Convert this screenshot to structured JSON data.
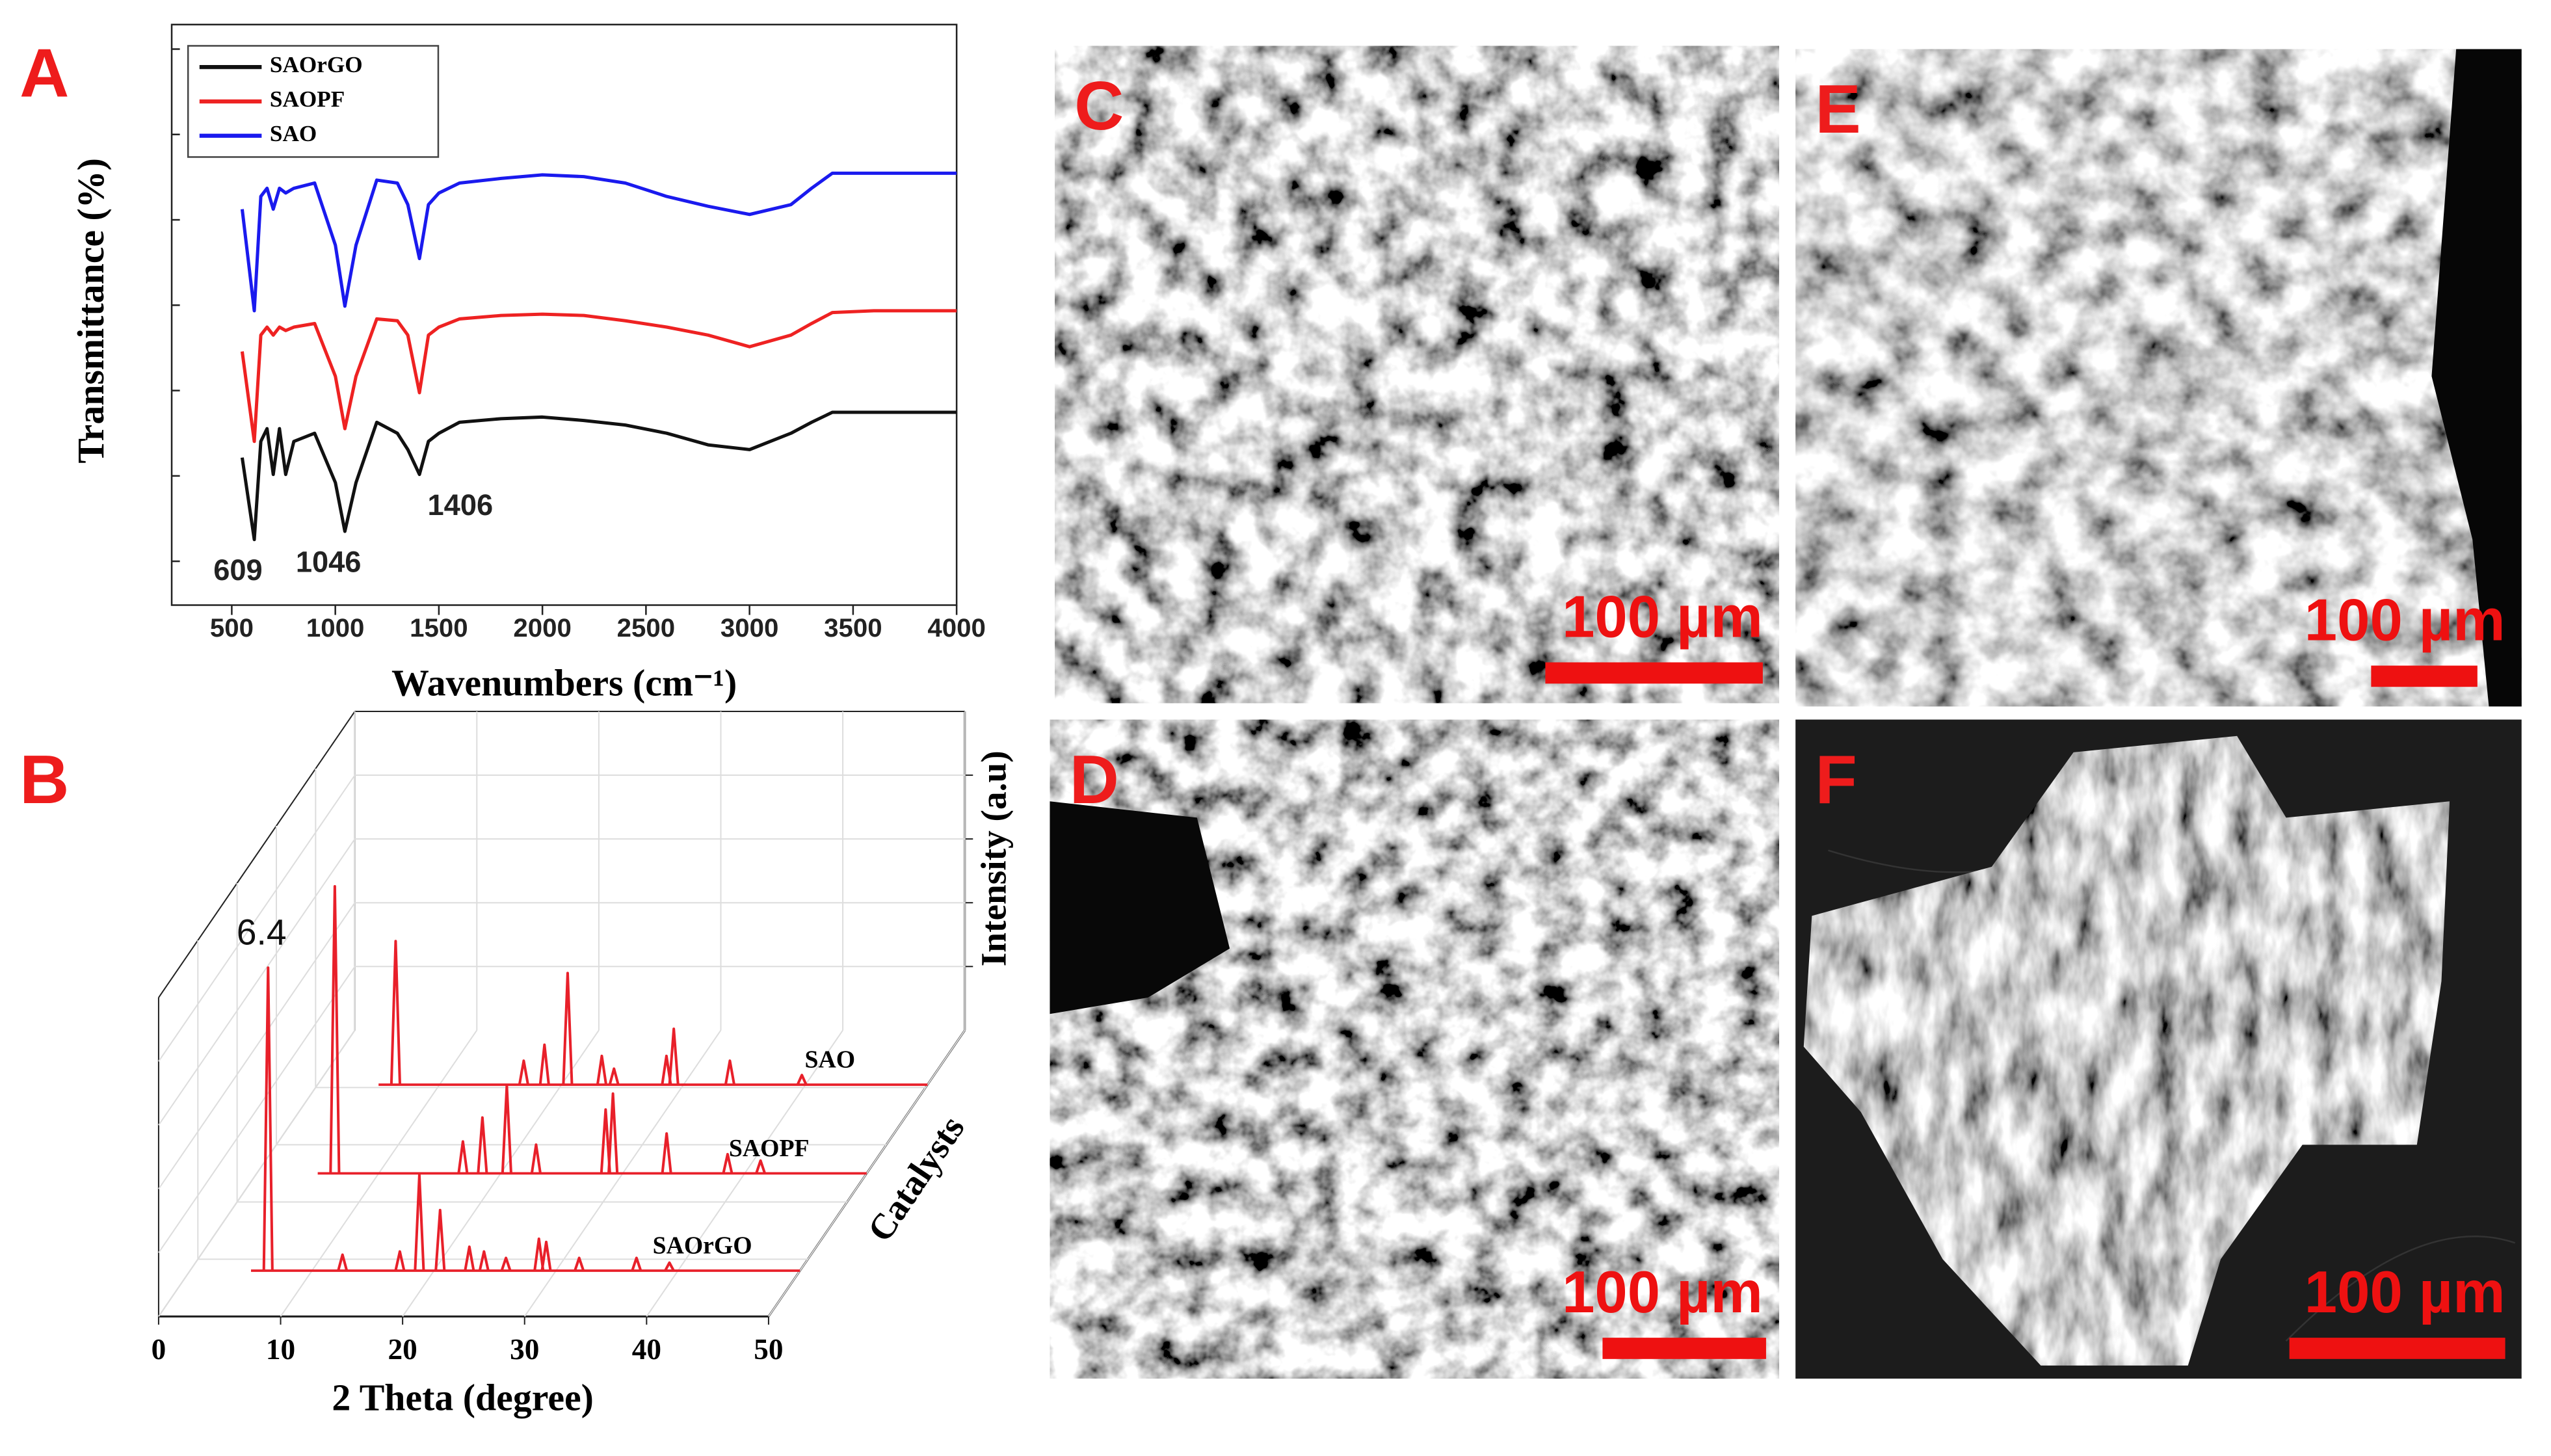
{
  "chart_data": [
    {
      "type": "line",
      "label": "A",
      "xlabel": "Wavenumbers (cm⁻¹)",
      "ylabel": "Transmittance (%)",
      "x": [
        550,
        609,
        640,
        670,
        700,
        730,
        760,
        800,
        900,
        1000,
        1046,
        1100,
        1200,
        1300,
        1350,
        1406,
        1450,
        1500,
        1600,
        1800,
        2000,
        2200,
        2400,
        2600,
        2800,
        3000,
        3200,
        3300,
        3400,
        3600,
        3800,
        4000
      ],
      "series": [
        {
          "name": "SAOrGO",
          "color": "#111111",
          "values": [
            25.4,
            11.3,
            28.2,
            30.4,
            22.5,
            30.4,
            22.5,
            28.2,
            29.6,
            21.1,
            12.7,
            21.1,
            31.5,
            29.6,
            26.8,
            22.5,
            28.2,
            29.6,
            31.5,
            32.1,
            32.4,
            31.8,
            31.0,
            29.6,
            27.6,
            26.8,
            29.6,
            31.5,
            33.2,
            33.2,
            33.2,
            33.2
          ]
        },
        {
          "name": "SAOPF",
          "color": "#ee2222",
          "values": [
            43.7,
            28.2,
            46.5,
            47.9,
            46.5,
            47.9,
            47.3,
            47.9,
            48.5,
            39.4,
            30.4,
            39.4,
            49.3,
            49.0,
            46.5,
            36.6,
            46.5,
            47.9,
            49.3,
            49.9,
            50.1,
            49.9,
            49.0,
            47.9,
            46.5,
            44.5,
            46.5,
            48.5,
            50.4,
            50.7,
            50.7,
            50.7
          ]
        },
        {
          "name": "SAO",
          "color": "#1a1aee",
          "values": [
            68.2,
            50.7,
            70.4,
            71.8,
            68.2,
            71.8,
            71.0,
            71.8,
            72.7,
            62.0,
            51.5,
            62.0,
            73.2,
            72.7,
            69.0,
            59.7,
            69.0,
            71.0,
            72.7,
            73.5,
            74.1,
            73.8,
            72.7,
            70.4,
            68.7,
            67.3,
            69.0,
            71.8,
            74.4,
            74.4,
            74.4,
            74.4
          ]
        }
      ],
      "annotations": [
        609,
        1046,
        1406
      ],
      "xlim": [
        210,
        4000
      ],
      "xticks": [
        500,
        1000,
        1500,
        2000,
        2500,
        3000,
        3500,
        4000
      ],
      "ylim": [
        0,
        100
      ],
      "legend": "upper left"
    },
    {
      "type": "waterfall",
      "label": "B",
      "xlabel": "2 Theta (degree)",
      "ylabel": "Intensity (a.u)",
      "zlabel": "Catalysts",
      "series": [
        {
          "name": "SAO",
          "color": "#e8202a",
          "x": [
            6.4,
            16.9,
            18.6,
            20.5,
            23.3,
            24.3,
            28.6,
            29.2,
            33.8,
            39.7
          ],
          "values": [
            90,
            15,
            25,
            70,
            18,
            10,
            18,
            35,
            15,
            6
          ]
        },
        {
          "name": "SAOPF",
          "color": "#e8202a",
          "x": [
            6.4,
            16.9,
            18.5,
            20.5,
            22.9,
            28.6,
            29.2,
            33.6,
            38.6,
            41.3
          ],
          "values": [
            180,
            20,
            35,
            55,
            18,
            40,
            50,
            25,
            12,
            8
          ]
        },
        {
          "name": "SAOrGO",
          "color": "#e8202a",
          "x": [
            6.4,
            12.5,
            17.2,
            18.8,
            20.5,
            22.9,
            24.1,
            25.9,
            28.6,
            29.2,
            31.9,
            36.6,
            39.3
          ],
          "values": [
            190,
            10,
            12,
            60,
            38,
            15,
            12,
            8,
            20,
            18,
            8,
            8,
            5
          ]
        }
      ],
      "annotations": [
        6.4
      ],
      "xlim": [
        0,
        50
      ],
      "xticks": [
        0,
        10,
        20,
        30,
        40,
        50
      ],
      "ylim": [
        0,
        200
      ],
      "grid": true
    }
  ],
  "images": [
    {
      "label": "C",
      "scale_bar": "100 µm"
    },
    {
      "label": "D",
      "scale_bar": "100 µm"
    },
    {
      "label": "E",
      "scale_bar": "100 µm"
    },
    {
      "label": "F",
      "scale_bar": "100 µm"
    }
  ]
}
